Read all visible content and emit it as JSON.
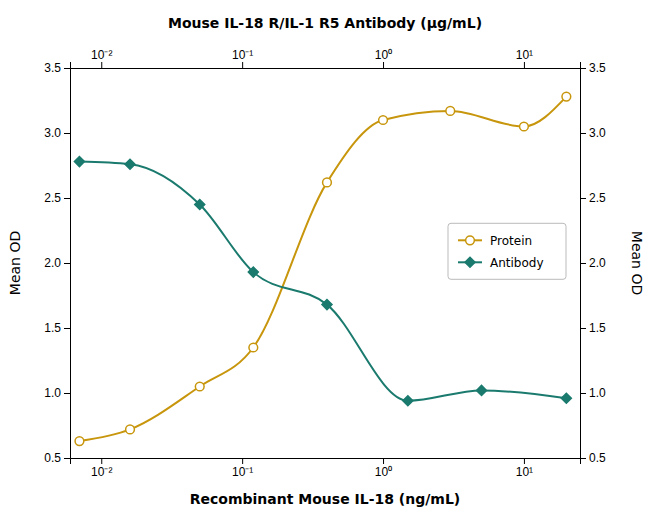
{
  "chart_data": {
    "type": "line",
    "xlabel": "Recombinant Mouse IL-18 (ng/mL)",
    "x2label": "Mouse IL-18 R/IL-1 R5 Antibody (μg/mL)",
    "ylabel": "Mean OD",
    "y2label": "Mean OD",
    "log": "x",
    "grid": false,
    "legend": "right",
    "background_color": "#FFFFFF",
    "xlim": [
      0.006,
      25.0
    ],
    "xticks": [
      {
        "value": 0.01,
        "label": "10⁻²"
      },
      {
        "value": 0.1,
        "label": "10⁻¹"
      },
      {
        "value": 1,
        "label": "10⁰"
      },
      {
        "value": 10,
        "label": "10¹"
      }
    ],
    "x2lim": [
      0.006,
      25.0
    ],
    "x2ticks": [
      {
        "value": 0.01,
        "label": "10⁻²"
      },
      {
        "value": 0.1,
        "label": "10⁻¹"
      },
      {
        "value": 1,
        "label": "10⁰"
      },
      {
        "value": 10,
        "label": "10¹"
      }
    ],
    "ylim": [
      0.5,
      3.5
    ],
    "yticks": [
      0.5,
      {
        "value": 1,
        "label": "1.0"
      },
      1.5,
      {
        "value": 2,
        "label": "2.0"
      },
      2.5,
      {
        "value": 3,
        "label": "3.0"
      },
      3.5
    ],
    "y2lim": [
      0.5,
      3.5
    ],
    "y2ticks": [
      0.5,
      {
        "value": 1,
        "label": "1.0"
      },
      1.5,
      {
        "value": 2,
        "label": "2.0"
      },
      2.5,
      {
        "value": 3,
        "label": "3.0"
      },
      3.5
    ],
    "series": [
      {
        "name": "Protein",
        "color": "#C8960C",
        "marker": "circle-open",
        "line_style": "solid",
        "x": [
          0.007,
          0.016,
          0.05,
          0.12,
          0.4,
          1.0,
          3.0,
          10.0,
          20.0
        ],
        "values": [
          0.63,
          0.72,
          1.05,
          1.35,
          2.62,
          3.1,
          3.17,
          3.05,
          3.28
        ]
      },
      {
        "name": "Antibody",
        "color": "#1A7A6E",
        "marker": "diamond",
        "line_style": "solid",
        "x": [
          0.007,
          0.016,
          0.05,
          0.12,
          0.4,
          1.5,
          5.0,
          20.0
        ],
        "values": [
          2.78,
          2.76,
          2.45,
          1.93,
          1.68,
          0.94,
          1.02,
          0.96
        ]
      }
    ]
  }
}
